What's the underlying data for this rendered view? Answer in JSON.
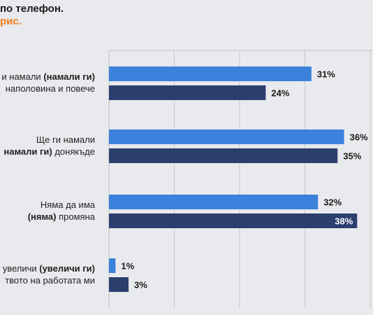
{
  "header": {
    "title_line_1": "по телефон.",
    "title_line_2": "рис."
  },
  "colors": {
    "background": "#e9eaed",
    "series_light": "#3a82dc",
    "series_dark": "#2c3e6e",
    "accent_orange": "#f07d1c",
    "gridline": "#c5c7cc"
  },
  "chart_data": {
    "type": "bar",
    "orientation": "horizontal",
    "categories": [
      {
        "line1": "и намали ",
        "line1_bold": "(намали ги)",
        "line2": " наполовина и повече",
        "line2_bold": ""
      },
      {
        "line1": "Ще ги намали",
        "line1_bold": "",
        "line2": " донякъде",
        "line2_bold": "намали ги)"
      },
      {
        "line1": "Няма да има",
        "line1_bold": "",
        "line2": " промяна",
        "line2_bold": "(няма)"
      },
      {
        "line1": "увеличи ",
        "line1_bold": "(увеличи ги)",
        "line2": "твото на работата ми",
        "line2_bold": ""
      }
    ],
    "series": [
      {
        "values": [
          31,
          36,
          32,
          1
        ],
        "labels": [
          "31%",
          "36%",
          "32%",
          "1%"
        ]
      },
      {
        "values": [
          24,
          35,
          38,
          3
        ],
        "labels": [
          "24%",
          "35%",
          "38%",
          "3%"
        ]
      }
    ],
    "xlim": [
      0,
      40
    ],
    "grid": true,
    "legend": "none"
  }
}
